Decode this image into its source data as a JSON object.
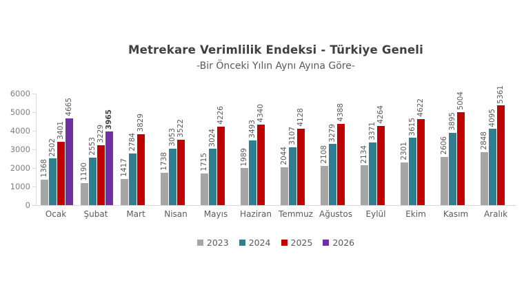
{
  "figure": {
    "title": "Metrekare Verimlilik Endeksi - Türkiye Geneli",
    "subtitle": "-Bir Önceki Yılın Aynı Ayına Göre-"
  },
  "chart_data": {
    "type": "bar",
    "title": "Metrekare Verimlilik Endeksi - Türkiye Geneli",
    "subtitle": "-Bir Önceki Yılın Aynı Ayına Göre-",
    "categories": [
      "Ocak",
      "Şubat",
      "Mart",
      "Nisan",
      "Mayıs",
      "Haziran",
      "Temmuz",
      "Ağustos",
      "Eylül",
      "Ekim",
      "Kasım",
      "Aralık"
    ],
    "series": [
      {
        "name": "2023",
        "color": "#a6a6a6",
        "values": [
          1368,
          1190,
          1417,
          1738,
          1715,
          1989,
          2044,
          2108,
          2134,
          2301,
          2606,
          2848
        ]
      },
      {
        "name": "2024",
        "color": "#2e7f8f",
        "values": [
          2502,
          2553,
          2784,
          3053,
          3024,
          3493,
          3107,
          3279,
          3371,
          3615,
          3895,
          4095
        ]
      },
      {
        "name": "2025",
        "color": "#c00000",
        "values": [
          3401,
          3229,
          3829,
          3522,
          4226,
          4340,
          4128,
          4388,
          4264,
          4622,
          5004,
          5361
        ]
      },
      {
        "name": "2026",
        "color": "#7030a0",
        "values": [
          4665,
          3965,
          null,
          null,
          null,
          null,
          null,
          null,
          null,
          null,
          null,
          null
        ]
      }
    ],
    "ylim": [
      0,
      6000
    ],
    "yticks": [
      0,
      1000,
      2000,
      3000,
      4000,
      5000,
      6000
    ],
    "grid": false,
    "legend_position": "bottom",
    "bold_value_labels": [
      {
        "series": "2026",
        "category": "Şubat"
      }
    ],
    "value_labels_rotated": true
  },
  "style_colors": {
    "title": "#404040",
    "subtitle": "#595959",
    "axis_line": "#d9d9d9",
    "y_tick_label": "#7f7f7f",
    "value_label": "#595959",
    "month_label": "#595959",
    "legend_label": "#595959",
    "background": "#ffffff"
  }
}
